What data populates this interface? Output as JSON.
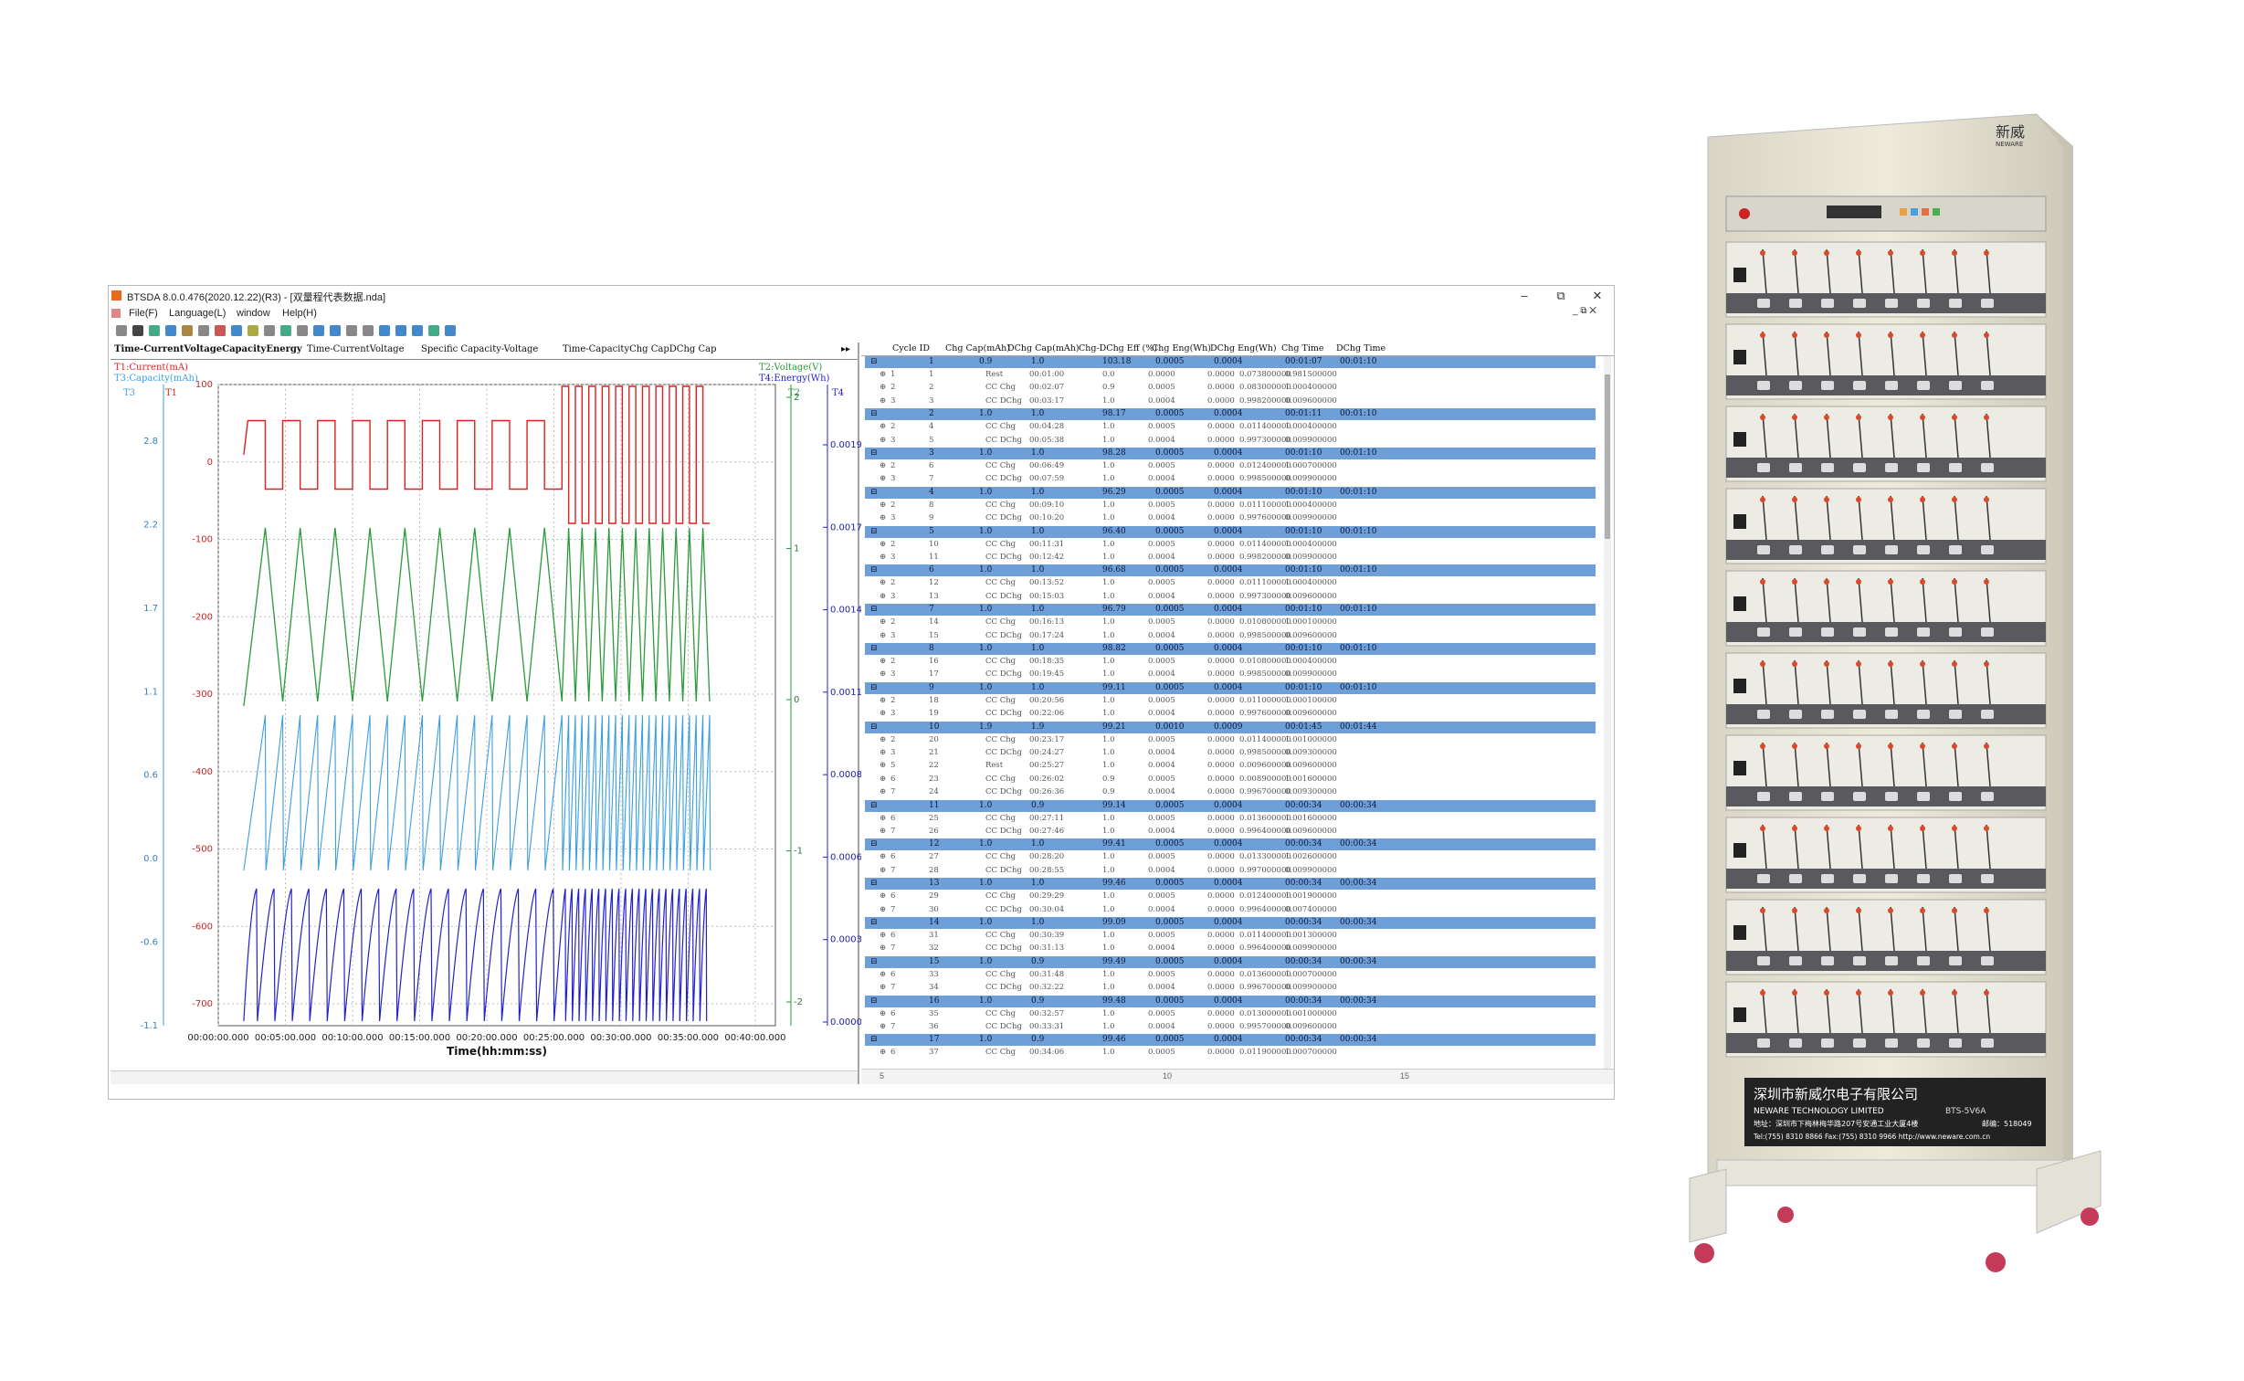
{
  "window": {
    "title": "BTSDA 8.0.0.476(2020.12.22)(R3) - [双量程代表数据.nda]",
    "minimize": "–",
    "restore": "⧉",
    "close": "✕"
  },
  "menu": [
    "File(F)",
    "Language(L)",
    "window",
    "Help(H)"
  ],
  "tabs": [
    "Time-CurrentVoltageCapacityEnergy",
    "Time-CurrentVoltage",
    "Specific Capacity-Voltage",
    "Time-CapacityChg CapDChg Cap"
  ],
  "chart": {
    "legend_left": [
      "T1:Current(mA)",
      "T3:Capacity(mAh)"
    ],
    "legend_right": [
      "T2:Voltage(V)",
      "T4:Energy(Wh)"
    ],
    "axis_t3": "T3",
    "axis_t1": "T1",
    "axis_t2": "T2",
    "axis_t4": "T4",
    "xlabel": "Time(hh:mm:ss)",
    "x_ticks": [
      "00:00:00.000",
      "00:05:00.000",
      "00:10:00.000",
      "00:15:00.000",
      "00:20:00.000",
      "00:25:00.000",
      "00:30:00.000",
      "00:35:00.000",
      "00:40:00.000"
    ],
    "t3_ticks": [
      "2.8",
      "2.2",
      "1.7",
      "1.1",
      "0.6",
      "0.0",
      "-0.6",
      "-1.1"
    ],
    "t1_ticks": [
      "100",
      "0",
      "-100",
      "-200",
      "-300",
      "-400",
      "-500",
      "-600",
      "-700"
    ],
    "t2_ticks": [
      "2",
      "1",
      "0",
      "-1",
      "-2"
    ],
    "t4_ticks": [
      "0.0019",
      "0.0017",
      "0.0014",
      "0.0011",
      "0.0008",
      "0.0006",
      "0.0003",
      "0.0000"
    ],
    "colors": {
      "current": "#e02020",
      "voltage": "#2a9a3a",
      "capacity": "#3a9ee0",
      "energy": "#2222cc"
    }
  },
  "chart_data": {
    "type": "line",
    "xlabel": "Time(hh:mm:ss)",
    "xlim": [
      "00:00:00.000",
      "00:40:00.000"
    ],
    "series": [
      {
        "name": "T1:Current(mA)",
        "pattern": "square",
        "x_start_min": 2.2,
        "x_end_min": 36.5,
        "period_min_part1": 2.6,
        "period_min_part2": 1.0,
        "switch_min": 25.0,
        "high": 50,
        "low": -50,
        "high2": 100,
        "low2": -100
      },
      {
        "name": "T2:Voltage(V)",
        "pattern": "triangle",
        "high": 1.95,
        "low": 0.05
      },
      {
        "name": "T3:Capacity(mAh)",
        "pattern": "sawtooth",
        "high": 1.0,
        "low": 0.0
      },
      {
        "name": "T4:Energy(Wh)",
        "pattern": "sawtooth",
        "high": 0.0004,
        "low": 0.0
      }
    ]
  },
  "grid": {
    "headers": [
      "Cycle ID",
      "Chg Cap(mAh)",
      "DChg Cap(mAh)",
      "Chg-DChg Eff (%)",
      "Chg Eng(Wh)",
      "DChg Eng(Wh)",
      "Chg Time",
      "DChg Time"
    ],
    "rows": [
      {
        "type": "c",
        "v": [
          "1",
          "0.9",
          "1.0",
          "103.18",
          "0.0005",
          "0.0004",
          "00:01:07",
          "00:01:10"
        ]
      },
      {
        "type": "s",
        "v": [
          "1",
          "1",
          "Rest",
          "00:01:00",
          "0.0",
          "0.0000",
          "0.0000",
          "0.073800000",
          "0.981500000"
        ]
      },
      {
        "type": "s",
        "v": [
          "2",
          "2",
          "CC Chg",
          "00:02:07",
          "0.9",
          "0.0005",
          "0.0000",
          "0.083000000",
          "1.000400000"
        ]
      },
      {
        "type": "s",
        "v": [
          "3",
          "3",
          "CC DChg",
          "00:03:17",
          "1.0",
          "0.0004",
          "0.0000",
          "0.998200000",
          "0.009600000"
        ]
      },
      {
        "type": "c",
        "v": [
          "2",
          "1.0",
          "1.0",
          "98.17",
          "0.0005",
          "0.0004",
          "00:01:11",
          "00:01:10"
        ]
      },
      {
        "type": "s",
        "v": [
          "2",
          "4",
          "CC Chg",
          "00:04:28",
          "1.0",
          "0.0005",
          "0.0000",
          "0.011400000",
          "1.000400000"
        ]
      },
      {
        "type": "s",
        "v": [
          "3",
          "5",
          "CC DChg",
          "00:05:38",
          "1.0",
          "0.0004",
          "0.0000",
          "0.997300000",
          "0.009900000"
        ]
      },
      {
        "type": "c",
        "v": [
          "3",
          "1.0",
          "1.0",
          "98.28",
          "0.0005",
          "0.0004",
          "00:01:10",
          "00:01:10"
        ]
      },
      {
        "type": "s",
        "v": [
          "2",
          "6",
          "CC Chg",
          "00:06:49",
          "1.0",
          "0.0005",
          "0.0000",
          "0.012400000",
          "1.000700000"
        ]
      },
      {
        "type": "s",
        "v": [
          "3",
          "7",
          "CC DChg",
          "00:07:59",
          "1.0",
          "0.0004",
          "0.0000",
          "0.998500000",
          "0.009900000"
        ]
      },
      {
        "type": "c",
        "v": [
          "4",
          "1.0",
          "1.0",
          "96.29",
          "0.0005",
          "0.0004",
          "00:01:10",
          "00:01:10"
        ]
      },
      {
        "type": "s",
        "v": [
          "2",
          "8",
          "CC Chg",
          "00:09:10",
          "1.0",
          "0.0005",
          "0.0000",
          "0.011100000",
          "1.000400000"
        ]
      },
      {
        "type": "s",
        "v": [
          "3",
          "9",
          "CC DChg",
          "00:10:20",
          "1.0",
          "0.0004",
          "0.0000",
          "0.997600000",
          "0.009900000"
        ]
      },
      {
        "type": "c",
        "v": [
          "5",
          "1.0",
          "1.0",
          "96.40",
          "0.0005",
          "0.0004",
          "00:01:10",
          "00:01:10"
        ]
      },
      {
        "type": "s",
        "v": [
          "2",
          "10",
          "CC Chg",
          "00:11:31",
          "1.0",
          "0.0005",
          "0.0000",
          "0.011400000",
          "1.000400000"
        ]
      },
      {
        "type": "s",
        "v": [
          "3",
          "11",
          "CC DChg",
          "00:12:42",
          "1.0",
          "0.0004",
          "0.0000",
          "0.998200000",
          "0.009900000"
        ]
      },
      {
        "type": "c",
        "v": [
          "6",
          "1.0",
          "1.0",
          "96.68",
          "0.0005",
          "0.0004",
          "00:01:10",
          "00:01:10"
        ]
      },
      {
        "type": "s",
        "v": [
          "2",
          "12",
          "CC Chg",
          "00:13:52",
          "1.0",
          "0.0005",
          "0.0000",
          "0.011100000",
          "1.000400000"
        ]
      },
      {
        "type": "s",
        "v": [
          "3",
          "13",
          "CC DChg",
          "00:15:03",
          "1.0",
          "0.0004",
          "0.0000",
          "0.997300000",
          "0.009600000"
        ]
      },
      {
        "type": "c",
        "v": [
          "7",
          "1.0",
          "1.0",
          "96.79",
          "0.0005",
          "0.0004",
          "00:01:10",
          "00:01:10"
        ]
      },
      {
        "type": "s",
        "v": [
          "2",
          "14",
          "CC Chg",
          "00:16:13",
          "1.0",
          "0.0005",
          "0.0000",
          "0.010800000",
          "1.000100000"
        ]
      },
      {
        "type": "s",
        "v": [
          "3",
          "15",
          "CC DChg",
          "00:17:24",
          "1.0",
          "0.0004",
          "0.0000",
          "0.998500000",
          "0.009600000"
        ]
      },
      {
        "type": "c",
        "v": [
          "8",
          "1.0",
          "1.0",
          "98.82",
          "0.0005",
          "0.0004",
          "00:01:10",
          "00:01:10"
        ]
      },
      {
        "type": "s",
        "v": [
          "2",
          "16",
          "CC Chg",
          "00:18:35",
          "1.0",
          "0.0005",
          "0.0000",
          "0.010800000",
          "1.000400000"
        ]
      },
      {
        "type": "s",
        "v": [
          "3",
          "17",
          "CC DChg",
          "00:19:45",
          "1.0",
          "0.0004",
          "0.0000",
          "0.998500000",
          "0.009900000"
        ]
      },
      {
        "type": "c",
        "v": [
          "9",
          "1.0",
          "1.0",
          "99.11",
          "0.0005",
          "0.0004",
          "00:01:10",
          "00:01:10"
        ]
      },
      {
        "type": "s",
        "v": [
          "2",
          "18",
          "CC Chg",
          "00:20:56",
          "1.0",
          "0.0005",
          "0.0000",
          "0.011000000",
          "1.000100000"
        ]
      },
      {
        "type": "s",
        "v": [
          "3",
          "19",
          "CC DChg",
          "00:22:06",
          "1.0",
          "0.0004",
          "0.0000",
          "0.997600000",
          "0.009600000"
        ]
      },
      {
        "type": "c",
        "v": [
          "10",
          "1.9",
          "1.9",
          "99.21",
          "0.0010",
          "0.0009",
          "00:01:45",
          "00:01:44"
        ]
      },
      {
        "type": "s",
        "v": [
          "2",
          "20",
          "CC Chg",
          "00:23:17",
          "1.0",
          "0.0005",
          "0.0000",
          "0.011400000",
          "1.001000000"
        ]
      },
      {
        "type": "s",
        "v": [
          "3",
          "21",
          "CC DChg",
          "00:24:27",
          "1.0",
          "0.0004",
          "0.0000",
          "0.998500000",
          "0.009300000"
        ]
      },
      {
        "type": "s",
        "v": [
          "5",
          "22",
          "Rest",
          "00:25:27",
          "1.0",
          "0.0004",
          "0.0000",
          "0.009600000",
          "0.009600000"
        ]
      },
      {
        "type": "s",
        "v": [
          "6",
          "23",
          "CC Chg",
          "00:26:02",
          "0.9",
          "0.0005",
          "0.0000",
          "0.008900000",
          "1.001600000"
        ]
      },
      {
        "type": "s",
        "v": [
          "7",
          "24",
          "CC DChg",
          "00:26:36",
          "0.9",
          "0.0004",
          "0.0000",
          "0.996700000",
          "0.009300000"
        ]
      },
      {
        "type": "c",
        "v": [
          "11",
          "1.0",
          "0.9",
          "99.14",
          "0.0005",
          "0.0004",
          "00:00:34",
          "00:00:34"
        ]
      },
      {
        "type": "s",
        "v": [
          "6",
          "25",
          "CC Chg",
          "00:27:11",
          "1.0",
          "0.0005",
          "0.0000",
          "0.013600000",
          "1.001600000"
        ]
      },
      {
        "type": "s",
        "v": [
          "7",
          "26",
          "CC DChg",
          "00:27:46",
          "1.0",
          "0.0004",
          "0.0000",
          "0.996400000",
          "0.009600000"
        ]
      },
      {
        "type": "c",
        "v": [
          "12",
          "1.0",
          "1.0",
          "99.41",
          "0.0005",
          "0.0004",
          "00:00:34",
          "00:00:34"
        ]
      },
      {
        "type": "s",
        "v": [
          "6",
          "27",
          "CC Chg",
          "00:28:20",
          "1.0",
          "0.0005",
          "0.0000",
          "0.013300000",
          "1.002600000"
        ]
      },
      {
        "type": "s",
        "v": [
          "7",
          "28",
          "CC DChg",
          "00:28:55",
          "1.0",
          "0.0004",
          "0.0000",
          "0.997000000",
          "0.009900000"
        ]
      },
      {
        "type": "c",
        "v": [
          "13",
          "1.0",
          "1.0",
          "99.46",
          "0.0005",
          "0.0004",
          "00:00:34",
          "00:00:34"
        ]
      },
      {
        "type": "s",
        "v": [
          "6",
          "29",
          "CC Chg",
          "00:29:29",
          "1.0",
          "0.0005",
          "0.0000",
          "0.012400000",
          "1.001900000"
        ]
      },
      {
        "type": "s",
        "v": [
          "7",
          "30",
          "CC DChg",
          "00:30:04",
          "1.0",
          "0.0004",
          "0.0000",
          "0.996400000",
          "0.007400000"
        ]
      },
      {
        "type": "c",
        "v": [
          "14",
          "1.0",
          "1.0",
          "99.09",
          "0.0005",
          "0.0004",
          "00:00:34",
          "00:00:34"
        ]
      },
      {
        "type": "s",
        "v": [
          "6",
          "31",
          "CC Chg",
          "00:30:39",
          "1.0",
          "0.0005",
          "0.0000",
          "0.011400000",
          "1.001300000"
        ]
      },
      {
        "type": "s",
        "v": [
          "7",
          "32",
          "CC DChg",
          "00:31:13",
          "1.0",
          "0.0004",
          "0.0000",
          "0.996400000",
          "0.009900000"
        ]
      },
      {
        "type": "c",
        "v": [
          "15",
          "1.0",
          "0.9",
          "99.49",
          "0.0005",
          "0.0004",
          "00:00:34",
          "00:00:34"
        ]
      },
      {
        "type": "s",
        "v": [
          "6",
          "33",
          "CC Chg",
          "00:31:48",
          "1.0",
          "0.0005",
          "0.0000",
          "0.013600000",
          "1.000700000"
        ]
      },
      {
        "type": "s",
        "v": [
          "7",
          "34",
          "CC DChg",
          "00:32:22",
          "1.0",
          "0.0004",
          "0.0000",
          "0.996700000",
          "0.009900000"
        ]
      },
      {
        "type": "c",
        "v": [
          "16",
          "1.0",
          "0.9",
          "99.48",
          "0.0005",
          "0.0004",
          "00:00:34",
          "00:00:34"
        ]
      },
      {
        "type": "s",
        "v": [
          "6",
          "35",
          "CC Chg",
          "00:32:57",
          "1.0",
          "0.0005",
          "0.0000",
          "0.013000000",
          "1.001000000"
        ]
      },
      {
        "type": "s",
        "v": [
          "7",
          "36",
          "CC DChg",
          "00:33:31",
          "1.0",
          "0.0004",
          "0.0000",
          "0.995700000",
          "0.009600000"
        ]
      },
      {
        "type": "c",
        "v": [
          "17",
          "1.0",
          "0.9",
          "99.46",
          "0.0005",
          "0.0004",
          "00:00:34",
          "00:00:34"
        ]
      },
      {
        "type": "s",
        "v": [
          "6",
          "37",
          "CC Chg",
          "00:34:06",
          "1.0",
          "0.0005",
          "0.0000",
          "0.011900000",
          "1.000700000"
        ]
      }
    ],
    "hscroll_labels": [
      "5",
      "10",
      "15"
    ]
  },
  "rack": {
    "brand": "新威",
    "brand_en": "NEWARE",
    "company_cn": "深圳市新威尔电子有限公司",
    "company_en": "NEWARE TECHNOLOGY LIMITED",
    "address": "地址：深圳市下梅林梅华路207号安通工业大厦4楼",
    "postcode": "邮编：518049",
    "tel": "Tel:(755) 8310 8866  Fax:(755) 8310 9966  http://www.neware.com.cn",
    "model": "BTS-5V6A"
  }
}
